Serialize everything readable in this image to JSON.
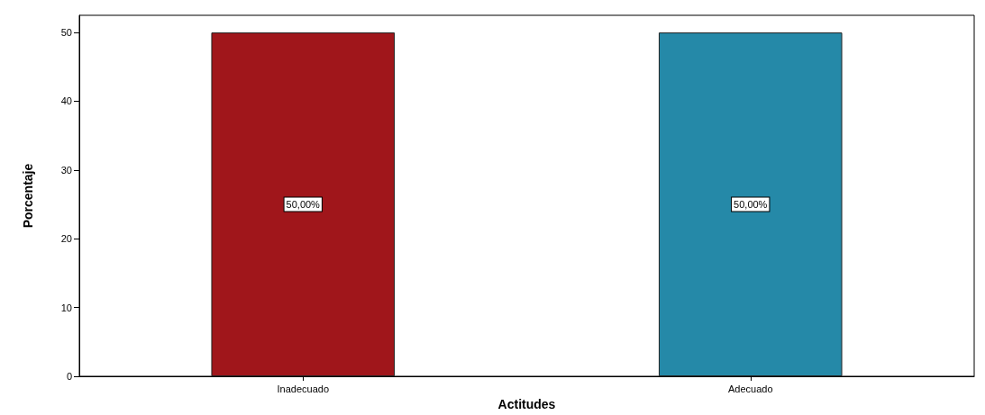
{
  "chart_data": {
    "type": "bar",
    "xlabel": "Actitudes",
    "ylabel": "Porcentaje",
    "categories": [
      "Inadecuado",
      "Adecuado"
    ],
    "values": [
      50,
      50
    ],
    "colors": [
      "#a0161b",
      "#2589a8"
    ],
    "value_labels": [
      "50,00%",
      "50,00%"
    ],
    "ylim": [
      0,
      52.5
    ],
    "yticks": [
      0,
      10,
      20,
      30,
      40,
      50
    ],
    "grid": false
  }
}
